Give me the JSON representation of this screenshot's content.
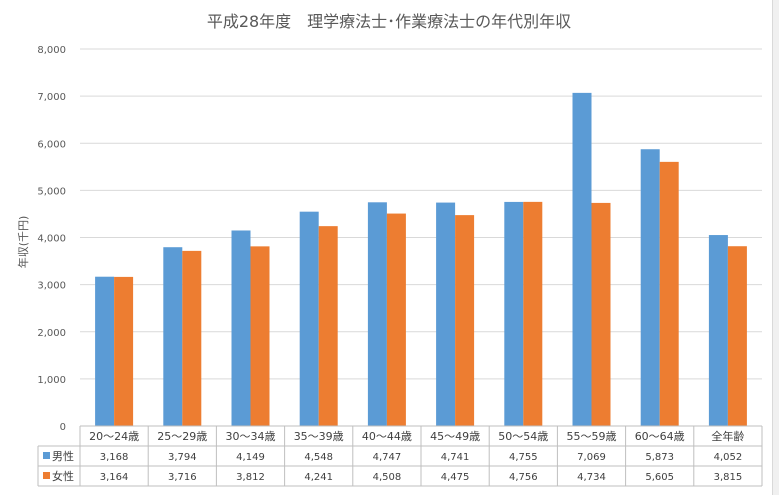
{
  "chart_data": {
    "type": "bar",
    "title": "平成28年度　理学療法士･作業療法士の年代別年収",
    "ylabel": "年収(千円)",
    "xlabel": "",
    "ylim": [
      0,
      8000
    ],
    "yticks": [
      "0",
      "1,000",
      "2,000",
      "3,000",
      "4,000",
      "5,000",
      "6,000",
      "7,000",
      "8,000"
    ],
    "grid": true,
    "legend": "data-table",
    "categories": [
      "20～24歳",
      "25～29歳",
      "30～34歳",
      "35～39歳",
      "40～44歳",
      "45～49歳",
      "50～54歳",
      "55～59歳",
      "60～64歳",
      "全年齢"
    ],
    "series": [
      {
        "name": "男性",
        "color": "#5b9bd5",
        "values": [
          3168,
          3794,
          4149,
          4548,
          4747,
          4741,
          4755,
          7069,
          5873,
          4052
        ],
        "labels": [
          "3,168",
          "3,794",
          "4,149",
          "4,548",
          "4,747",
          "4,741",
          "4,755",
          "7,069",
          "5,873",
          "4,052"
        ]
      },
      {
        "name": "女性",
        "color": "#ed7d31",
        "values": [
          3164,
          3716,
          3812,
          4241,
          4508,
          4475,
          4756,
          4734,
          5605,
          3815
        ],
        "labels": [
          "3,164",
          "3,716",
          "3,812",
          "4,241",
          "4,508",
          "4,475",
          "4,756",
          "4,734",
          "5,605",
          "3,815"
        ]
      }
    ]
  }
}
